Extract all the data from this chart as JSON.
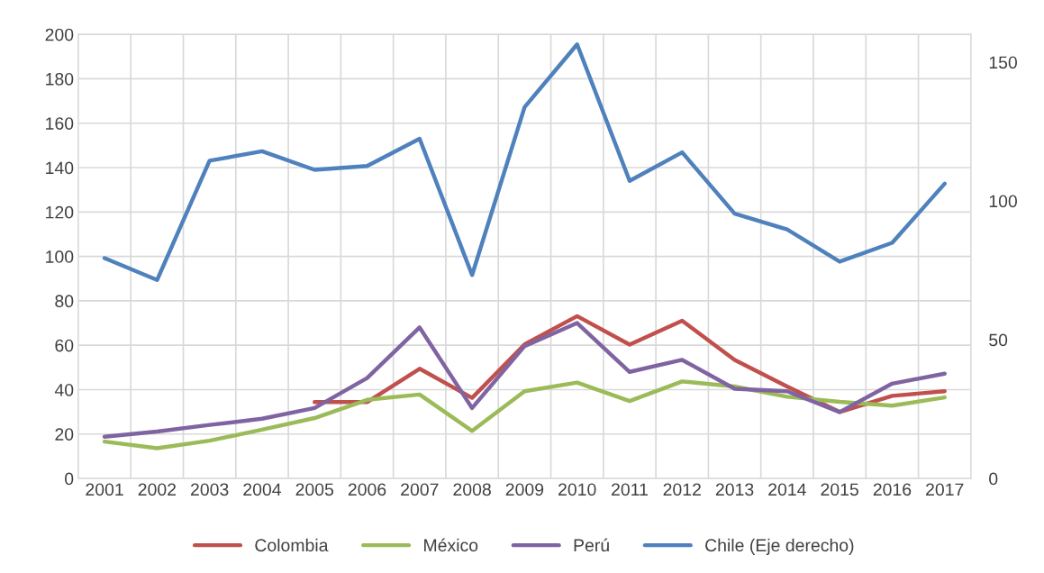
{
  "chart_data": {
    "type": "line",
    "categories": [
      "2001",
      "2002",
      "2003",
      "2004",
      "2005",
      "2006",
      "2007",
      "2008",
      "2009",
      "2010",
      "2011",
      "2012",
      "2013",
      "2014",
      "2015",
      "2016",
      "2017"
    ],
    "series": [
      {
        "name": "Colombia",
        "color": "#c0504d",
        "values": [
          null,
          null,
          null,
          null,
          34.4,
          34.4,
          49.4,
          36.3,
          60.4,
          73.1,
          60.3,
          71,
          53.4,
          41.4,
          29.9,
          37.2,
          39.3
        ]
      },
      {
        "name": "México",
        "color": "#9bbb59",
        "values": [
          16.6,
          13.6,
          17,
          22,
          27.2,
          35.4,
          37.8,
          21.4,
          39.3,
          43.2,
          34.9,
          43.7,
          41.4,
          36.8,
          34.5,
          32.8,
          36.5
        ]
      },
      {
        "name": "Perú",
        "color": "#8064a2",
        "values": [
          18.8,
          21.1,
          24.1,
          26.9,
          31.7,
          45.2,
          68,
          31.7,
          59.6,
          70,
          48,
          53.4,
          40.4,
          39.3,
          29.9,
          42.7,
          47.2
        ]
      },
      {
        "name": "Chile (Eje derecho)",
        "color": "#4f81bd",
        "axis": "y2",
        "values": [
          79.4,
          71.5,
          114.5,
          117.9,
          111.2,
          112.6,
          122.4,
          73.3,
          133.8,
          156.4,
          107.2,
          117.5,
          95.4,
          89.7,
          78.1,
          84.9,
          106.2
        ]
      }
    ],
    "ylim": [
      0,
      200
    ],
    "yticks": [
      0,
      20,
      40,
      60,
      80,
      100,
      120,
      140,
      160,
      180,
      200
    ],
    "y2lim": [
      0,
      160
    ],
    "y2ticks": [
      0,
      50,
      100,
      150
    ],
    "grid": true,
    "legend": "bottom",
    "marker": "none",
    "line_style": "solid"
  }
}
